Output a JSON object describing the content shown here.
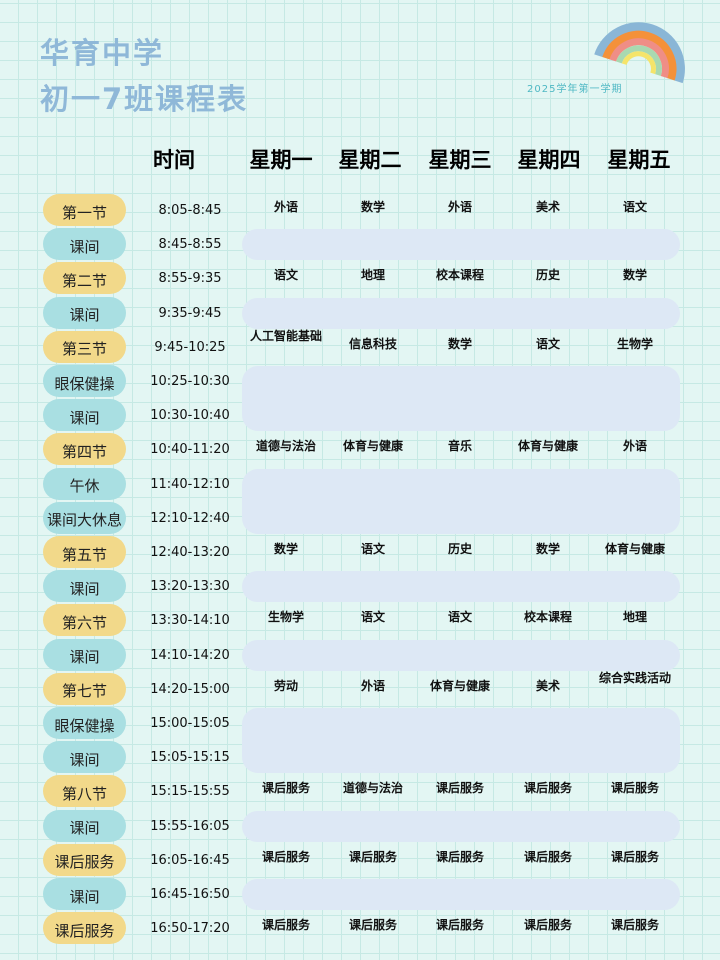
{
  "header": {
    "school": "华育中学",
    "title": "初一7班课程表",
    "term": "2025学年第一学期"
  },
  "colors": {
    "class_pill": "#f2d98a",
    "break_pill": "#a9dfe2",
    "break_band": "#dde8f5",
    "title": "#8fb8d8"
  },
  "columns": {
    "time": "时间",
    "days": [
      "星期一",
      "星期二",
      "星期三",
      "星期四",
      "星期五"
    ]
  },
  "rows": [
    {
      "label": "第一节",
      "time": "8:05-8:45",
      "type": "class",
      "subjects": [
        "外语",
        "数学",
        "外语",
        "美术",
        "语文"
      ]
    },
    {
      "label": "课间",
      "time": "8:45-8:55",
      "type": "break"
    },
    {
      "label": "第二节",
      "time": "8:55-9:35",
      "type": "class",
      "subjects": [
        "语文",
        "地理",
        "校本课程",
        "历史",
        "数学"
      ]
    },
    {
      "label": "课间",
      "time": "9:35-9:45",
      "type": "break"
    },
    {
      "label": "第三节",
      "time": "9:45-10:25",
      "type": "class",
      "subjects": [
        "人工智能基础",
        "信息科技",
        "数学",
        "语文",
        "生物学"
      ]
    },
    {
      "label": "眼保健操",
      "time": "10:25-10:30",
      "type": "break"
    },
    {
      "label": "课间",
      "time": "10:30-10:40",
      "type": "break"
    },
    {
      "label": "第四节",
      "time": "10:40-11:20",
      "type": "class",
      "subjects": [
        "道德与法治",
        "体育与健康",
        "音乐",
        "体育与健康",
        "外语"
      ]
    },
    {
      "label": "午休",
      "time": "11:40-12:10",
      "type": "break"
    },
    {
      "label": "课间大休息",
      "time": "12:10-12:40",
      "type": "break"
    },
    {
      "label": "第五节",
      "time": "12:40-13:20",
      "type": "class",
      "subjects": [
        "数学",
        "语文",
        "历史",
        "数学",
        "体育与健康"
      ]
    },
    {
      "label": "课间",
      "time": "13:20-13:30",
      "type": "break"
    },
    {
      "label": "第六节",
      "time": "13:30-14:10",
      "type": "class",
      "subjects": [
        "生物学",
        "语文",
        "语文",
        "校本课程",
        "地理"
      ]
    },
    {
      "label": "课间",
      "time": "14:10-14:20",
      "type": "break"
    },
    {
      "label": "第七节",
      "time": "14:20-15:00",
      "type": "class",
      "subjects": [
        "劳动",
        "外语",
        "体育与健康",
        "美术",
        "综合实践活动"
      ]
    },
    {
      "label": "眼保健操",
      "time": "15:00-15:05",
      "type": "break"
    },
    {
      "label": "课间",
      "time": "15:05-15:15",
      "type": "break"
    },
    {
      "label": "第八节",
      "time": "15:15-15:55",
      "type": "class",
      "subjects": [
        "课后服务",
        "道德与法治",
        "课后服务",
        "课后服务",
        "课后服务"
      ]
    },
    {
      "label": "课间",
      "time": "15:55-16:05",
      "type": "break"
    },
    {
      "label": "课后服务",
      "time": "16:05-16:45",
      "type": "class",
      "subjects": [
        "课后服务",
        "课后服务",
        "课后服务",
        "课后服务",
        "课后服务"
      ]
    },
    {
      "label": "课间",
      "time": "16:45-16:50",
      "type": "break"
    },
    {
      "label": "课后服务",
      "time": "16:50-17:20",
      "type": "class",
      "subjects": [
        "课后服务",
        "课后服务",
        "课后服务",
        "课后服务",
        "课后服务"
      ]
    }
  ]
}
